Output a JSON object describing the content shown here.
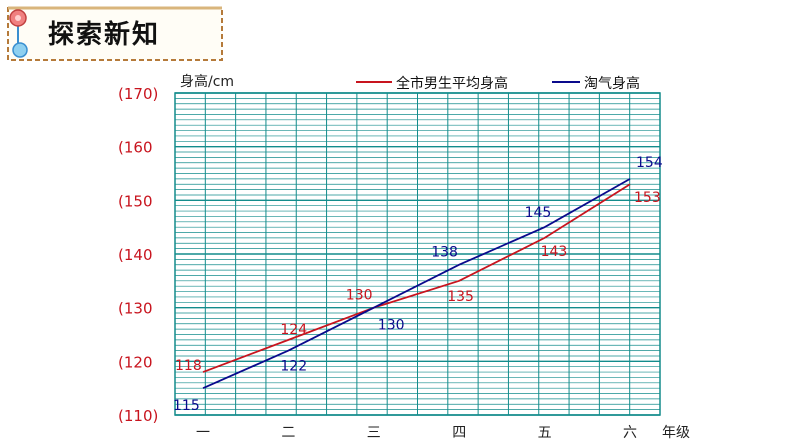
{
  "header": {
    "title": "探索新知"
  },
  "chart_data": {
    "type": "line",
    "title": "",
    "ylabel": "身高/cm",
    "xlabel": "年级",
    "categories": [
      "一",
      "二",
      "三",
      "四",
      "五",
      "六"
    ],
    "ylim": [
      110,
      170
    ],
    "yticks": [
      "(110)",
      "(120",
      "(130",
      "(140",
      "(150",
      "(160",
      "(170)"
    ],
    "ytick_values": [
      110,
      120,
      130,
      140,
      150,
      160,
      170
    ],
    "grid": true,
    "legend_position": "top-right",
    "series": [
      {
        "name": "全市男生平均身高",
        "color": "#c8141e",
        "values": [
          118,
          124,
          130,
          135,
          143,
          153
        ]
      },
      {
        "name": "淘气身高",
        "color": "#0a0a8c",
        "values": [
          115,
          122,
          130,
          138,
          145,
          154
        ]
      }
    ],
    "colors": {
      "grid": "#138c8c",
      "ytick": "#c8141e"
    }
  }
}
